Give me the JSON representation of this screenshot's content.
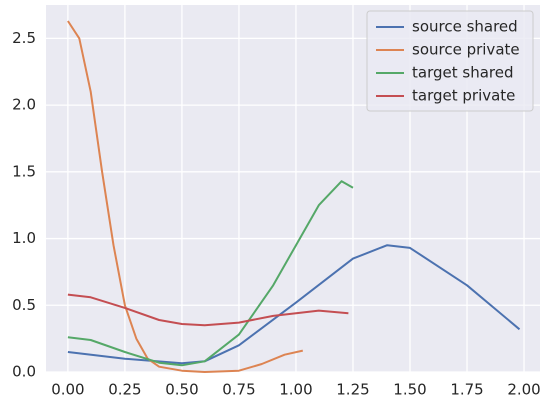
{
  "chart_data": {
    "type": "line",
    "series": [
      {
        "name": "source shared",
        "color": "#4c72b0",
        "x": [
          0,
          0.25,
          0.5,
          0.6,
          0.75,
          1.0,
          1.25,
          1.4,
          1.5,
          1.75,
          1.98
        ],
        "values": [
          0.15,
          0.1,
          0.065,
          0.08,
          0.2,
          0.52,
          0.85,
          0.95,
          0.93,
          0.65,
          0.32
        ]
      },
      {
        "name": "source private",
        "color": "#dd8452",
        "x": [
          0,
          0.05,
          0.1,
          0.15,
          0.2,
          0.25,
          0.3,
          0.35,
          0.4,
          0.5,
          0.6,
          0.75,
          0.85,
          0.95,
          1.03
        ],
        "values": [
          2.63,
          2.5,
          2.1,
          1.5,
          0.95,
          0.5,
          0.25,
          0.1,
          0.04,
          0.01,
          0.0,
          0.01,
          0.06,
          0.13,
          0.16
        ]
      },
      {
        "name": "target shared",
        "color": "#55a868",
        "x": [
          0,
          0.1,
          0.25,
          0.4,
          0.5,
          0.6,
          0.75,
          0.9,
          1.0,
          1.1,
          1.2,
          1.25
        ],
        "values": [
          0.26,
          0.24,
          0.15,
          0.07,
          0.05,
          0.08,
          0.28,
          0.65,
          0.95,
          1.25,
          1.43,
          1.38
        ]
      },
      {
        "name": "target private",
        "color": "#c44e52",
        "x": [
          0,
          0.1,
          0.25,
          0.4,
          0.5,
          0.6,
          0.75,
          0.9,
          1.0,
          1.1,
          1.23
        ],
        "values": [
          0.58,
          0.56,
          0.48,
          0.39,
          0.36,
          0.35,
          0.37,
          0.42,
          0.44,
          0.46,
          0.44
        ]
      }
    ],
    "xlim": [
      -0.096,
      2.07
    ],
    "ylim": [
      0,
      2.75
    ],
    "xticks": [
      {
        "value": 0,
        "label": "0.00"
      },
      {
        "value": 0.25,
        "label": "0.25"
      },
      {
        "value": 0.5,
        "label": "0.50"
      },
      {
        "value": 0.75,
        "label": "0.75"
      },
      {
        "value": 1,
        "label": "1.00"
      },
      {
        "value": 1.25,
        "label": "1.25"
      },
      {
        "value": 1.5,
        "label": "1.50"
      },
      {
        "value": 1.75,
        "label": "1.75"
      },
      {
        "value": 2,
        "label": "2.00"
      }
    ],
    "yticks": [
      {
        "value": 0,
        "label": "0.0"
      },
      {
        "value": 0.5,
        "label": "0.5"
      },
      {
        "value": 1,
        "label": "1.0"
      },
      {
        "value": 1.5,
        "label": "1.5"
      },
      {
        "value": 2,
        "label": "2.0"
      },
      2.5
    ],
    "grid": true,
    "legend": "upper right"
  }
}
